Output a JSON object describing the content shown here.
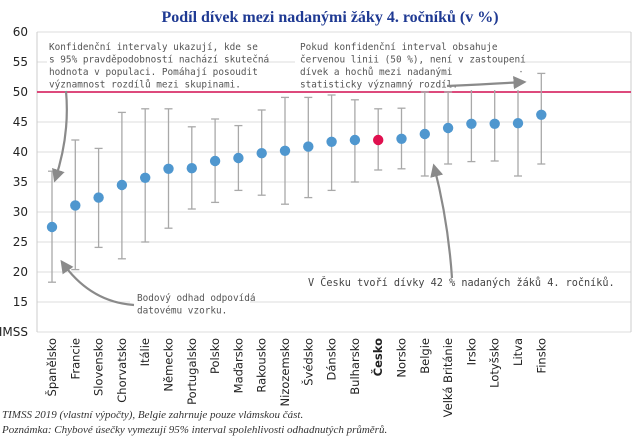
{
  "chart_data": {
    "type": "scatter",
    "title": "Podíl dívek mezi nadanými žáky 4. ročníků (v %)",
    "ylim": [
      10,
      60
    ],
    "yticks": [
      10,
      15,
      20,
      25,
      30,
      35,
      40,
      45,
      50,
      55,
      60
    ],
    "ytick_labels": [
      "TIMSS",
      "15",
      "20",
      "25",
      "30",
      "35",
      "40",
      "45",
      "50",
      "55",
      "60"
    ],
    "reference_line": 50,
    "highlight": "Česko",
    "colors": {
      "point": "#4f97cf",
      "highlight": "#e0104f",
      "reference": "#d8306a",
      "errorbar": "#a9a9a9",
      "grid": "#dddddd",
      "title": "#1f3a93"
    },
    "categories": [
      "Španělsko",
      "Francie",
      "Slovensko",
      "Chorvatsko",
      "Itálie",
      "Německo",
      "Portugalsko",
      "Polsko",
      "Maďarsko",
      "Rakousko",
      "Nizozemsko",
      "Švédsko",
      "Dánsko",
      "Bulharsko",
      "Česko",
      "Norsko",
      "Belgie",
      "Velká Británie",
      "Irsko",
      "Lotyšsko",
      "Litva",
      "Finsko"
    ],
    "values": [
      27.5,
      31.1,
      32.4,
      34.5,
      35.7,
      37.2,
      37.3,
      38.5,
      39.0,
      39.8,
      40.2,
      40.9,
      41.7,
      42.0,
      42.0,
      42.2,
      43.0,
      44.0,
      44.7,
      44.7,
      44.8,
      46.2
    ],
    "ci_low": [
      18.3,
      20.4,
      24.1,
      22.2,
      25.0,
      27.3,
      30.5,
      31.6,
      33.6,
      32.8,
      31.3,
      32.4,
      33.6,
      35.0,
      37.0,
      37.2,
      36.0,
      38.0,
      38.4,
      38.5,
      36.0,
      38.0
    ],
    "ci_high": [
      36.8,
      42.0,
      40.6,
      46.6,
      47.2,
      47.2,
      44.2,
      45.5,
      44.4,
      47.0,
      49.1,
      49.1,
      49.5,
      48.7,
      47.2,
      47.3,
      50.0,
      50.0,
      50.9,
      50.7,
      53.4,
      53.1
    ],
    "annotations": {
      "ci_note": [
        "Konfidenční intervaly ukazují, kde se",
        "s 95% pravděpodobností nachází skutečná",
        "hodnota v populaci. Pomáhají posoudit",
        "významnost rozdílů mezi skupinami."
      ],
      "red_line_note": [
        "Pokud konfidenční interval obsahuje",
        "červenou linii (50 %), není v zastoupení",
        "dívek a hochů mezi nadanými",
        "statisticky významný rozdíl."
      ],
      "point_note": [
        "Bodový odhad odpovídá",
        "datovému vzorku."
      ],
      "cz_note": "V Česku tvoří dívky 42 % nadaných žáků 4. ročníků."
    },
    "footnotes": [
      "TIMSS 2019 (vlastní výpočty), Belgie zahrnuje pouze vlámskou část.",
      "Poznámka: Chybové úsečky vymezují 95% interval spolehlivosti odhadnutých průměrů."
    ]
  }
}
